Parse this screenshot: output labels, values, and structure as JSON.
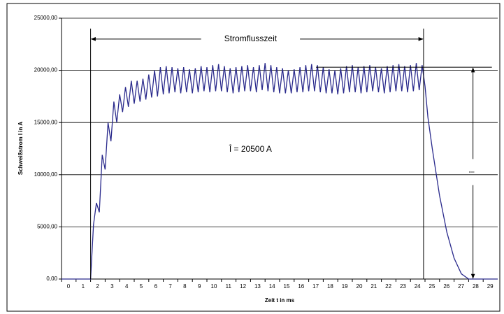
{
  "chart_data": {
    "type": "line",
    "xlabel": "Zeit t in ms",
    "ylabel": "Schweißstrom I in A",
    "annotations": {
      "duration": "Stromflusszeit",
      "peak": "Î = 20500 A",
      "peak_symbol": "Î"
    },
    "xlim": [
      0,
      30
    ],
    "xticks": [
      0,
      1,
      2,
      3,
      4,
      5,
      6,
      7,
      8,
      9,
      10,
      11,
      12,
      13,
      14,
      15,
      16,
      17,
      18,
      19,
      20,
      21,
      22,
      23,
      24,
      25,
      26,
      27,
      28,
      29
    ],
    "ylim": [
      0,
      25000
    ],
    "yticks": [
      {
        "value": 0,
        "label": "0,00"
      },
      {
        "value": 5000,
        "label": "5000,00"
      },
      {
        "value": 10000,
        "label": "10000,00"
      },
      {
        "value": 15000,
        "label": "15000,00"
      },
      {
        "value": 20000,
        "label": "20000,00"
      },
      {
        "value": 25000,
        "label": "25000,00"
      }
    ],
    "grid": true,
    "series": [
      {
        "color": "#2a2a8c",
        "x": [
          0,
          2,
          2.2,
          2.4,
          2.6,
          2.8,
          3,
          3.2,
          3.4,
          3.6,
          3.8,
          4,
          4.2,
          4.4,
          4.6,
          4.8,
          5,
          5.2,
          5.4,
          5.6,
          5.8,
          6,
          6.2,
          6.4,
          6.6,
          6.8,
          7,
          7.2,
          7.4,
          7.6,
          7.8,
          8,
          8.2,
          8.4,
          8.6,
          8.8,
          9,
          9.2,
          9.4,
          9.6,
          9.8,
          10,
          10.2,
          10.4,
          10.6,
          10.8,
          11,
          11.2,
          11.4,
          11.6,
          11.8,
          12,
          12.2,
          12.4,
          12.6,
          12.8,
          13,
          13.2,
          13.4,
          13.6,
          13.8,
          14,
          14.2,
          14.4,
          14.6,
          14.8,
          15,
          15.2,
          15.4,
          15.6,
          15.8,
          16,
          16.2,
          16.4,
          16.6,
          16.8,
          17,
          17.2,
          17.4,
          17.6,
          17.8,
          18,
          18.2,
          18.4,
          18.6,
          18.8,
          19,
          19.2,
          19.4,
          19.6,
          19.8,
          20,
          20.2,
          20.4,
          20.6,
          20.8,
          21,
          21.2,
          21.4,
          21.6,
          21.8,
          22,
          22.2,
          22.4,
          22.6,
          22.8,
          23,
          23.2,
          23.4,
          23.6,
          23.8,
          24,
          24.2,
          24.4,
          24.6,
          24.8,
          25,
          25.2,
          25.5,
          26,
          26.5,
          27,
          27.5,
          28,
          30
        ],
        "values": [
          0,
          0,
          5200,
          7300,
          6400,
          11900,
          10500,
          15000,
          13200,
          17000,
          15000,
          17700,
          16000,
          18400,
          16500,
          19000,
          16800,
          19000,
          17000,
          19200,
          17200,
          19600,
          17400,
          20000,
          17500,
          20300,
          17700,
          20400,
          17800,
          20300,
          17900,
          20200,
          17800,
          20300,
          17900,
          20100,
          17800,
          20200,
          17900,
          20400,
          18000,
          20300,
          17900,
          20500,
          18000,
          20600,
          18000,
          20400,
          17900,
          20200,
          17800,
          20300,
          17900,
          20400,
          18000,
          20500,
          18000,
          20300,
          17900,
          20500,
          18100,
          20700,
          18000,
          20500,
          17900,
          20300,
          17800,
          20200,
          17800,
          20000,
          17800,
          20100,
          17900,
          20300,
          17900,
          20500,
          18000,
          20600,
          18000,
          20500,
          17900,
          20300,
          17800,
          20100,
          17800,
          20000,
          17700,
          20200,
          17800,
          20400,
          17900,
          20500,
          17900,
          20300,
          17800,
          20400,
          17900,
          20500,
          18000,
          20300,
          17900,
          20200,
          17800,
          20400,
          17900,
          20500,
          18000,
          20600,
          18000,
          20400,
          17900,
          20500,
          18000,
          20700,
          18100,
          20500,
          18500,
          15500,
          12500,
          8000,
          4500,
          2000,
          500,
          0,
          0
        ]
      }
    ]
  }
}
